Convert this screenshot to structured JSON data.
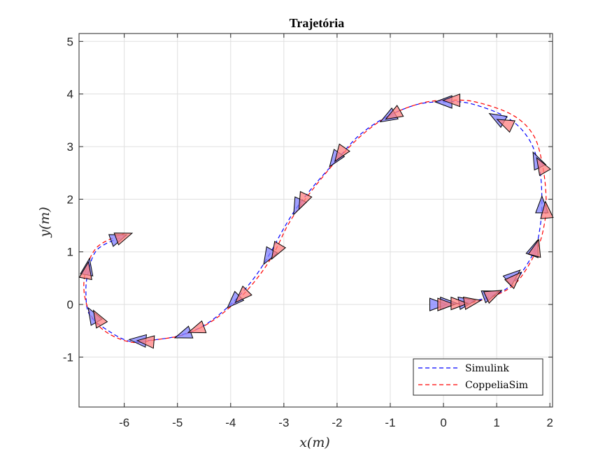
{
  "chart_data": {
    "type": "line",
    "title": "Trajetória",
    "xlabel": "x(m)",
    "ylabel": "y(m)",
    "xlim": [
      -6.85,
      2.05
    ],
    "ylim": [
      -1.95,
      5.15
    ],
    "xticks": [
      -6,
      -5,
      -4,
      -3,
      -2,
      -1,
      0,
      1,
      2
    ],
    "yticks": [
      -1,
      0,
      1,
      2,
      3,
      4,
      5
    ],
    "grid": true,
    "legend_position": "bottom-right",
    "series": [
      {
        "name": "Simulink",
        "color": "#0000ff",
        "style": "dashed",
        "x": [
          0,
          0.5,
          1.0,
          1.35,
          1.7,
          1.82,
          1.85,
          1.8,
          1.6,
          1.2,
          0.5,
          0,
          -0.5,
          -1.1,
          -1.6,
          -2.0,
          -2.4,
          -2.75,
          -3.0,
          -3.3,
          -3.6,
          -4.0,
          -4.5,
          -5.0,
          -5.5,
          -5.9,
          -6.3,
          -6.65,
          -6.72,
          -6.68,
          -6.5,
          -6.0
        ],
        "y": [
          0,
          0.05,
          0.2,
          0.45,
          1.0,
          1.5,
          2.0,
          2.6,
          3.15,
          3.55,
          3.82,
          3.85,
          3.8,
          3.55,
          3.2,
          2.75,
          2.3,
          1.85,
          1.45,
          0.9,
          0.45,
          0.0,
          -0.4,
          -0.6,
          -0.68,
          -0.7,
          -0.5,
          -0.2,
          0.2,
          0.6,
          1.05,
          1.3
        ]
      },
      {
        "name": "CoppeliaSim",
        "color": "#ff0000",
        "style": "dashed",
        "x": [
          0,
          0.5,
          1.0,
          1.4,
          1.76,
          1.9,
          1.93,
          1.87,
          1.7,
          1.3,
          0.6,
          0.1,
          -0.4,
          -1.0,
          -1.5,
          -1.95,
          -2.33,
          -2.67,
          -2.93,
          -3.2,
          -3.5,
          -3.9,
          -4.4,
          -4.9,
          -5.4,
          -5.85,
          -6.3,
          -6.6,
          -6.75,
          -6.72,
          -6.5,
          -6.0
        ],
        "y": [
          0,
          0.03,
          0.18,
          0.45,
          1.05,
          1.55,
          2.0,
          2.6,
          3.2,
          3.6,
          3.85,
          3.88,
          3.83,
          3.6,
          3.25,
          2.8,
          2.35,
          1.9,
          1.5,
          0.95,
          0.5,
          0.05,
          -0.35,
          -0.58,
          -0.67,
          -0.72,
          -0.55,
          -0.25,
          0.2,
          0.65,
          1.1,
          1.35
        ]
      }
    ],
    "markers": {
      "shape": "triangle",
      "simulink_color": "#8080ff",
      "coppelia_color": "#ff8080",
      "simulink": [
        [
          -0.1,
          0.0,
          0
        ],
        [
          0.1,
          0.02,
          0
        ],
        [
          0.45,
          0.05,
          10
        ],
        [
          0.9,
          0.2,
          20
        ],
        [
          1.32,
          0.55,
          40
        ],
        [
          1.72,
          1.08,
          70
        ],
        [
          1.85,
          1.9,
          90
        ],
        [
          1.75,
          2.75,
          115
        ],
        [
          1.0,
          3.55,
          150
        ],
        [
          0.0,
          3.85,
          180
        ],
        [
          -1.05,
          3.55,
          210
        ],
        [
          -2.05,
          2.75,
          235
        ],
        [
          -2.75,
          1.85,
          245
        ],
        [
          -3.3,
          0.9,
          240
        ],
        [
          -3.95,
          0.05,
          225
        ],
        [
          -4.9,
          -0.58,
          200
        ],
        [
          -5.75,
          -0.68,
          175
        ],
        [
          -6.6,
          -0.2,
          120
        ],
        [
          -6.68,
          0.72,
          80
        ],
        [
          -6.1,
          1.27,
          20
        ]
      ],
      "coppelia": [
        [
          0.05,
          0.0,
          0
        ],
        [
          0.3,
          0.02,
          0
        ],
        [
          0.55,
          0.05,
          10
        ],
        [
          0.95,
          0.2,
          25
        ],
        [
          1.35,
          0.5,
          45
        ],
        [
          1.75,
          1.08,
          75
        ],
        [
          1.93,
          1.8,
          95
        ],
        [
          1.83,
          2.65,
          120
        ],
        [
          1.15,
          3.45,
          155
        ],
        [
          0.15,
          3.88,
          180
        ],
        [
          -0.95,
          3.6,
          210
        ],
        [
          -1.95,
          2.85,
          235
        ],
        [
          -2.65,
          1.95,
          245
        ],
        [
          -3.15,
          1.0,
          240
        ],
        [
          -3.8,
          0.15,
          225
        ],
        [
          -4.65,
          -0.48,
          200
        ],
        [
          -5.6,
          -0.7,
          175
        ],
        [
          -6.5,
          -0.25,
          120
        ],
        [
          -6.7,
          0.65,
          80
        ],
        [
          -6.0,
          1.3,
          20
        ]
      ]
    }
  }
}
